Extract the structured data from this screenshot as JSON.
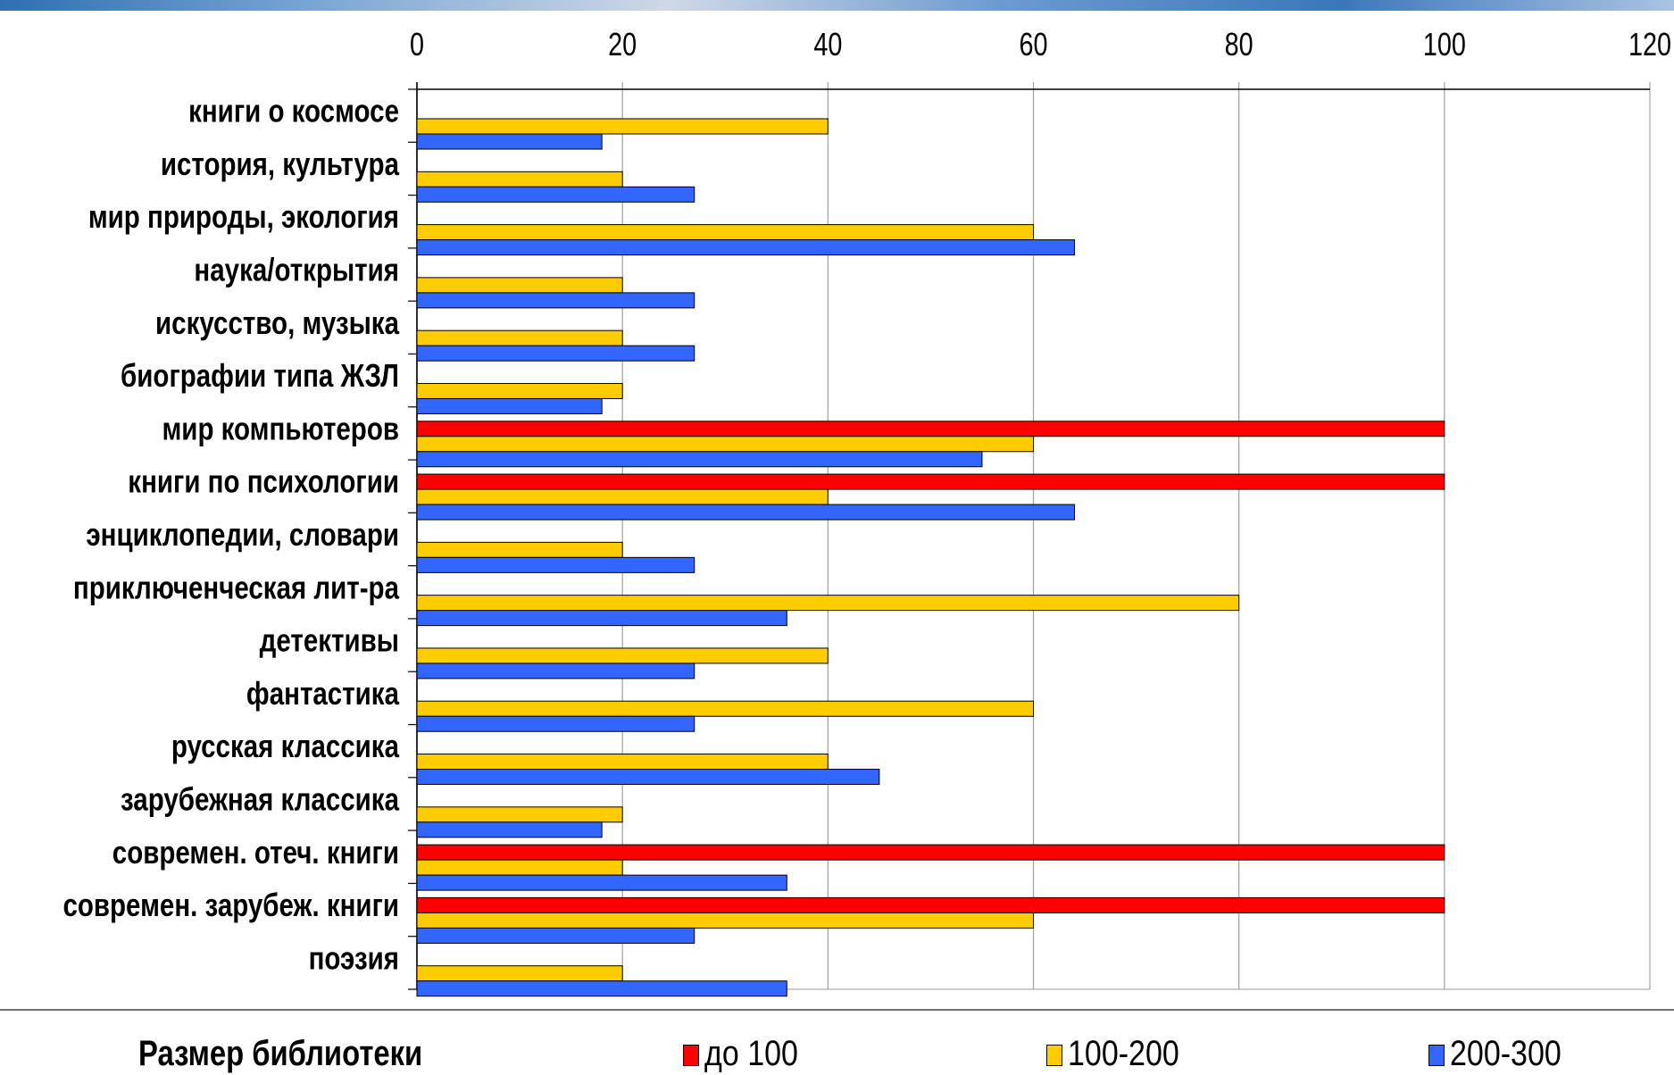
{
  "chart_data": {
    "type": "bar",
    "orientation": "horizontal",
    "categories": [
      "книги о космосе",
      "история, культура",
      "мир природы, экология",
      "наука/открытия",
      "искусство, музыка",
      "биографии типа ЖЗЛ",
      "мир компьютеров",
      "книги по психологии",
      "энциклопедии, словари",
      "приключенческая лит-ра",
      "детективы",
      "фантастика",
      "русская классика",
      "зарубежная классика",
      "современ. отеч. книги",
      "современ. зарубеж. книги",
      "поэзия"
    ],
    "series": [
      {
        "name": "до 100",
        "color": "#ff0000",
        "values": [
          0,
          0,
          0,
          0,
          0,
          0,
          100,
          100,
          0,
          0,
          0,
          0,
          0,
          0,
          100,
          100,
          0
        ]
      },
      {
        "name": "100-200",
        "color": "#ffcc00",
        "values": [
          40,
          20,
          60,
          20,
          20,
          20,
          60,
          40,
          20,
          80,
          40,
          60,
          40,
          20,
          20,
          60,
          20
        ]
      },
      {
        "name": "200-300",
        "color": "#3366ff",
        "values": [
          18,
          27,
          64,
          27,
          27,
          18,
          55,
          64,
          27,
          36,
          27,
          27,
          45,
          18,
          36,
          27,
          36
        ]
      }
    ],
    "xticks": [
      "0",
      "20",
      "40",
      "60",
      "80",
      "100",
      "120"
    ],
    "xlim": [
      0,
      120
    ],
    "grid": true,
    "legend_position": "bottom",
    "legend_title": "Размер библиотеки"
  }
}
